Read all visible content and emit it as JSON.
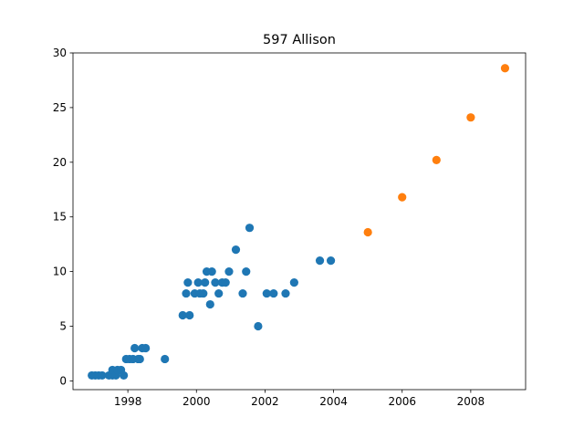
{
  "chart_data": {
    "type": "scatter",
    "title": "597 Allison",
    "xlabel": "",
    "ylabel": "",
    "xlim": [
      1996.4,
      2009.6
    ],
    "ylim": [
      -0.8,
      30
    ],
    "x_ticks": [
      1998,
      2000,
      2002,
      2004,
      2006,
      2008
    ],
    "y_ticks": [
      0,
      5,
      10,
      15,
      20,
      25,
      30
    ],
    "grid": false,
    "legend": "none",
    "series": [
      {
        "color": "#1f77b4",
        "points": [
          [
            1996.95,
            0.5
          ],
          [
            1997.05,
            0.5
          ],
          [
            1997.15,
            0.5
          ],
          [
            1997.25,
            0.5
          ],
          [
            1997.45,
            0.5
          ],
          [
            1997.55,
            0.5
          ],
          [
            1997.55,
            1
          ],
          [
            1997.65,
            0.5
          ],
          [
            1997.7,
            1
          ],
          [
            1997.8,
            1
          ],
          [
            1997.88,
            0.5
          ],
          [
            1997.95,
            2
          ],
          [
            1998.05,
            2
          ],
          [
            1998.15,
            2
          ],
          [
            1998.2,
            3
          ],
          [
            1998.3,
            2
          ],
          [
            1998.35,
            2
          ],
          [
            1998.42,
            3
          ],
          [
            1998.52,
            3
          ],
          [
            1999.08,
            2
          ],
          [
            1999.6,
            6
          ],
          [
            1999.7,
            8
          ],
          [
            1999.75,
            9
          ],
          [
            1999.8,
            6
          ],
          [
            1999.95,
            8
          ],
          [
            2000.05,
            9
          ],
          [
            2000.1,
            8
          ],
          [
            2000.2,
            8
          ],
          [
            2000.25,
            9
          ],
          [
            2000.3,
            10
          ],
          [
            2000.4,
            7
          ],
          [
            2000.45,
            10
          ],
          [
            2000.55,
            9
          ],
          [
            2000.65,
            8
          ],
          [
            2000.75,
            9
          ],
          [
            2000.85,
            9
          ],
          [
            2000.95,
            10
          ],
          [
            2001.15,
            12
          ],
          [
            2001.35,
            8
          ],
          [
            2001.45,
            10
          ],
          [
            2001.55,
            14
          ],
          [
            2001.8,
            5
          ],
          [
            2002.05,
            8
          ],
          [
            2002.25,
            8
          ],
          [
            2002.6,
            8
          ],
          [
            2002.85,
            9
          ],
          [
            2003.6,
            11
          ],
          [
            2003.92,
            11
          ]
        ]
      },
      {
        "color": "#ff7f0e",
        "points": [
          [
            2005,
            13.6
          ],
          [
            2006,
            16.8
          ],
          [
            2007,
            20.2
          ],
          [
            2008,
            24.1
          ],
          [
            2009,
            28.6
          ]
        ]
      }
    ]
  }
}
